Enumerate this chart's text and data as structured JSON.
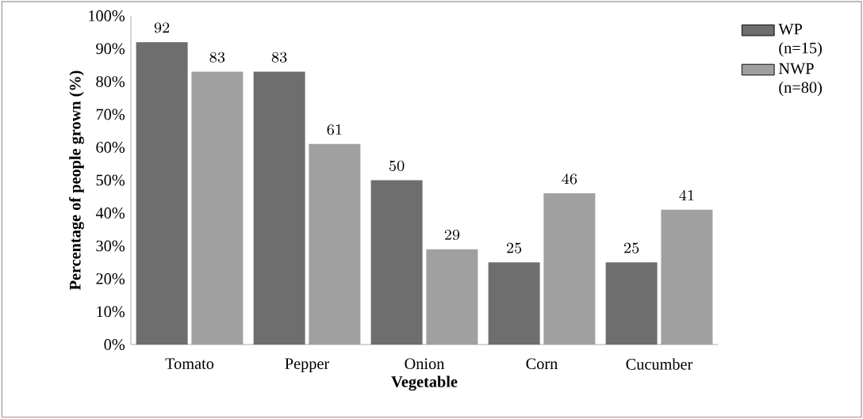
{
  "chart_data": {
    "type": "bar",
    "xlabel": "Vegetable",
    "ylabel": "Percentage of people grown (%)",
    "categories": [
      "Tomato",
      "Pepper",
      "Onion",
      "Corn",
      "Cucumber"
    ],
    "series": [
      {
        "name": "WP (n=15)",
        "color": "#6e6e6e",
        "values": [
          92,
          83,
          50,
          25,
          25
        ]
      },
      {
        "name": "NWP (n=80)",
        "color": "#a0a0a0",
        "values": [
          83,
          61,
          29,
          46,
          41
        ]
      }
    ],
    "ylim": [
      0,
      100
    ],
    "yticks": [
      {
        "value": 0,
        "label": "0%"
      },
      {
        "value": 10,
        "label": "10%"
      },
      {
        "value": 20,
        "label": "20%"
      },
      {
        "value": 30,
        "label": "30%"
      },
      {
        "value": 40,
        "label": "40%"
      },
      {
        "value": 50,
        "label": "50%"
      },
      {
        "value": 60,
        "label": "60%"
      },
      {
        "value": 70,
        "label": "70%"
      },
      {
        "value": 80,
        "label": "80%"
      },
      {
        "value": 90,
        "label": "90%"
      },
      {
        "value": 100,
        "label": "100%"
      }
    ],
    "data_labels": true,
    "grid": false,
    "legend": "top right"
  }
}
